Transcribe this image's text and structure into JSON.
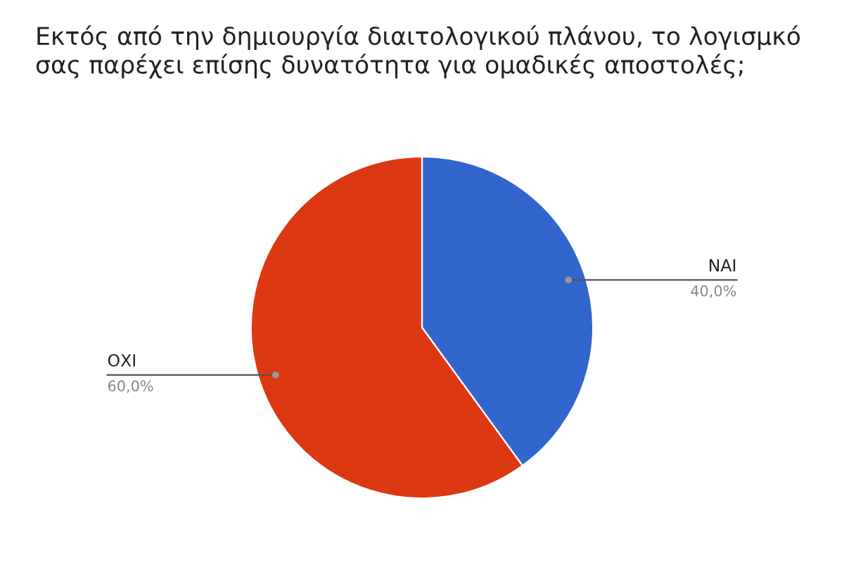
{
  "chart_data": {
    "type": "pie",
    "title": "Εκτός από την δημιουργία διαιτολογικού πλάνου, το λογισμκό σας παρέχει επίσης δυνατότητα για ομαδικές αποστολές;",
    "categories": [
      "ΝΑΙ",
      "ΟΧΙ"
    ],
    "values": [
      40,
      60
    ],
    "colors": [
      "#3366cc",
      "#dc3912"
    ],
    "value_labels": [
      "40,0%",
      "60,0%"
    ]
  }
}
